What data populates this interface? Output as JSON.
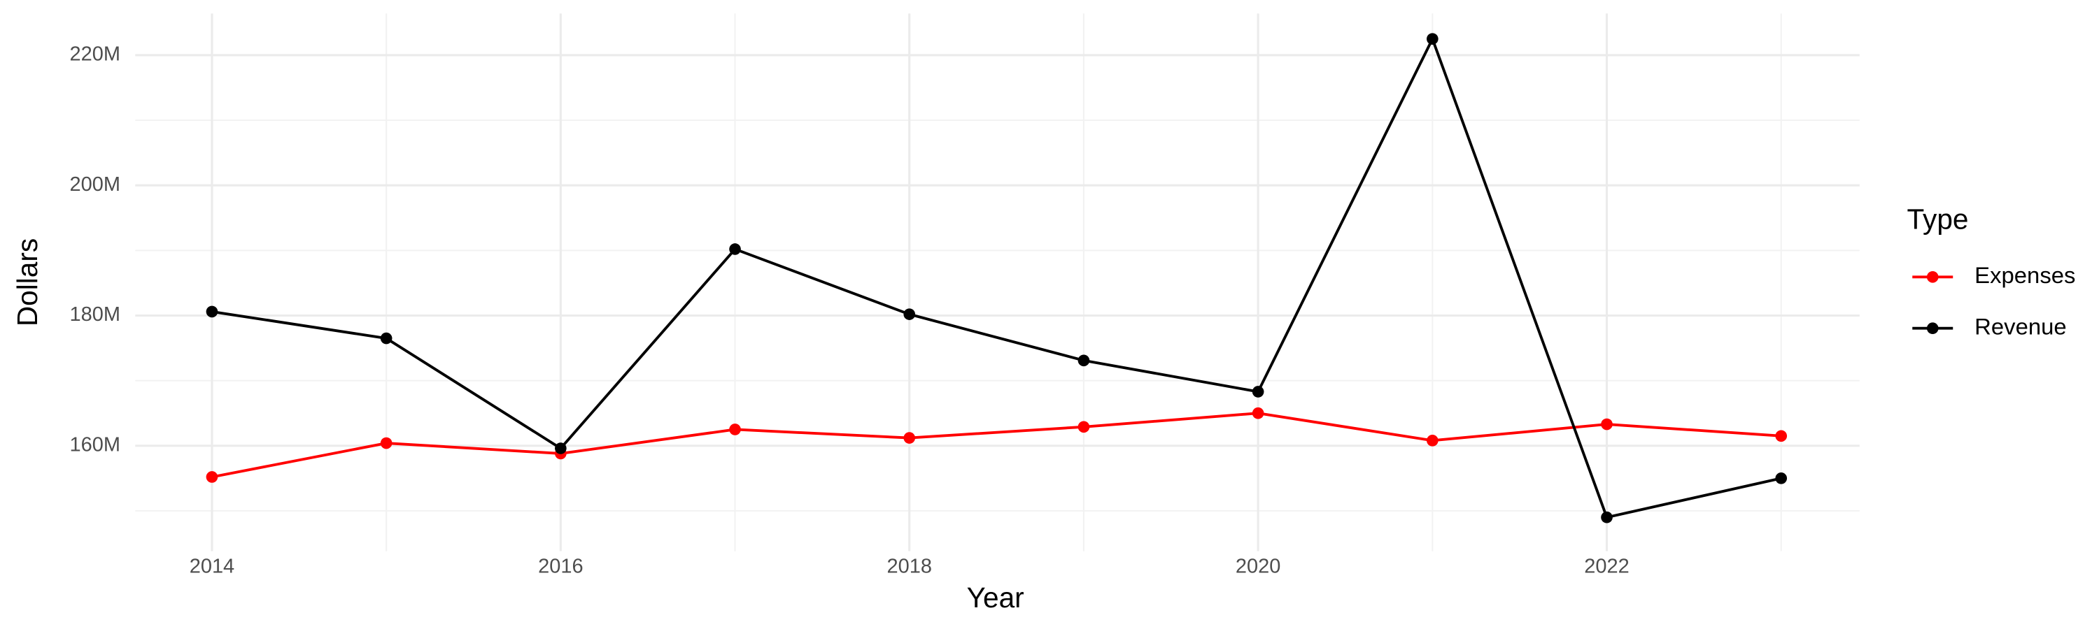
{
  "chart_data": {
    "type": "line",
    "x_label": "Year",
    "y_label": "Dollars",
    "legend_title": "Type",
    "x": [
      2014,
      2015,
      2016,
      2017,
      2018,
      2019,
      2020,
      2021,
      2022,
      2023
    ],
    "series": [
      {
        "name": "Expenses",
        "color": "#ff0000",
        "values": [
          155200000,
          160400000,
          158800000,
          162500000,
          161200000,
          162900000,
          165000000,
          160800000,
          163300000,
          161500000
        ]
      },
      {
        "name": "Revenue",
        "color": "#000000",
        "values": [
          180600000,
          176500000,
          159600000,
          190200000,
          180200000,
          173100000,
          168300000,
          222500000,
          149000000,
          155000000
        ]
      }
    ],
    "xlim": [
      2013.56,
      2023.45
    ],
    "xticks": [
      2014,
      2016,
      2018,
      2020,
      2022
    ],
    "ylim": [
      143800000,
      226400000
    ],
    "yticks": [
      {
        "value": 160000000,
        "label": "160M"
      },
      {
        "value": 180000000,
        "label": "180M"
      },
      {
        "value": 200000000,
        "label": "200M"
      },
      {
        "value": 220000000,
        "label": "220M"
      }
    ],
    "grid": true,
    "legend": "right"
  }
}
